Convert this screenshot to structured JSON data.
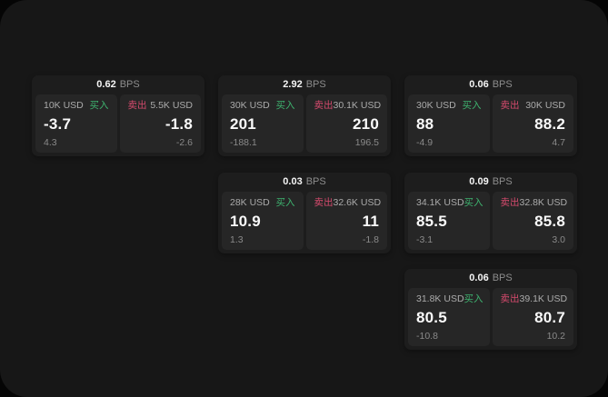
{
  "labels": {
    "bps": "BPS",
    "buy": "买入",
    "sell": "卖出"
  },
  "colors": {
    "buy": "#3eb36f",
    "sell": "#d54a6d"
  },
  "cards": [
    {
      "bps": "0.62",
      "buy": {
        "amount": "10K USD",
        "price": "-3.7",
        "change": "4.3"
      },
      "sell": {
        "amount": "5.5K USD",
        "price": "-1.8",
        "change": "-2.6"
      }
    },
    {
      "bps": "2.92",
      "buy": {
        "amount": "30K USD",
        "price": "201",
        "change": "-188.1"
      },
      "sell": {
        "amount": "30.1K USD",
        "price": "210",
        "change": "196.5"
      }
    },
    {
      "bps": "0.06",
      "buy": {
        "amount": "30K USD",
        "price": "88",
        "change": "-4.9"
      },
      "sell": {
        "amount": "30K USD",
        "price": "88.2",
        "change": "4.7"
      }
    },
    {
      "bps": "0.03",
      "buy": {
        "amount": "28K USD",
        "price": "10.9",
        "change": "1.3"
      },
      "sell": {
        "amount": "32.6K USD",
        "price": "11",
        "change": "-1.8"
      }
    },
    {
      "bps": "0.09",
      "buy": {
        "amount": "34.1K USD",
        "price": "85.5",
        "change": "-3.1"
      },
      "sell": {
        "amount": "32.8K USD",
        "price": "85.8",
        "change": "3.0"
      }
    },
    {
      "bps": "0.06",
      "buy": {
        "amount": "31.8K USD",
        "price": "80.5",
        "change": "-10.8"
      },
      "sell": {
        "amount": "39.1K USD",
        "price": "80.7",
        "change": "10.2"
      }
    }
  ]
}
